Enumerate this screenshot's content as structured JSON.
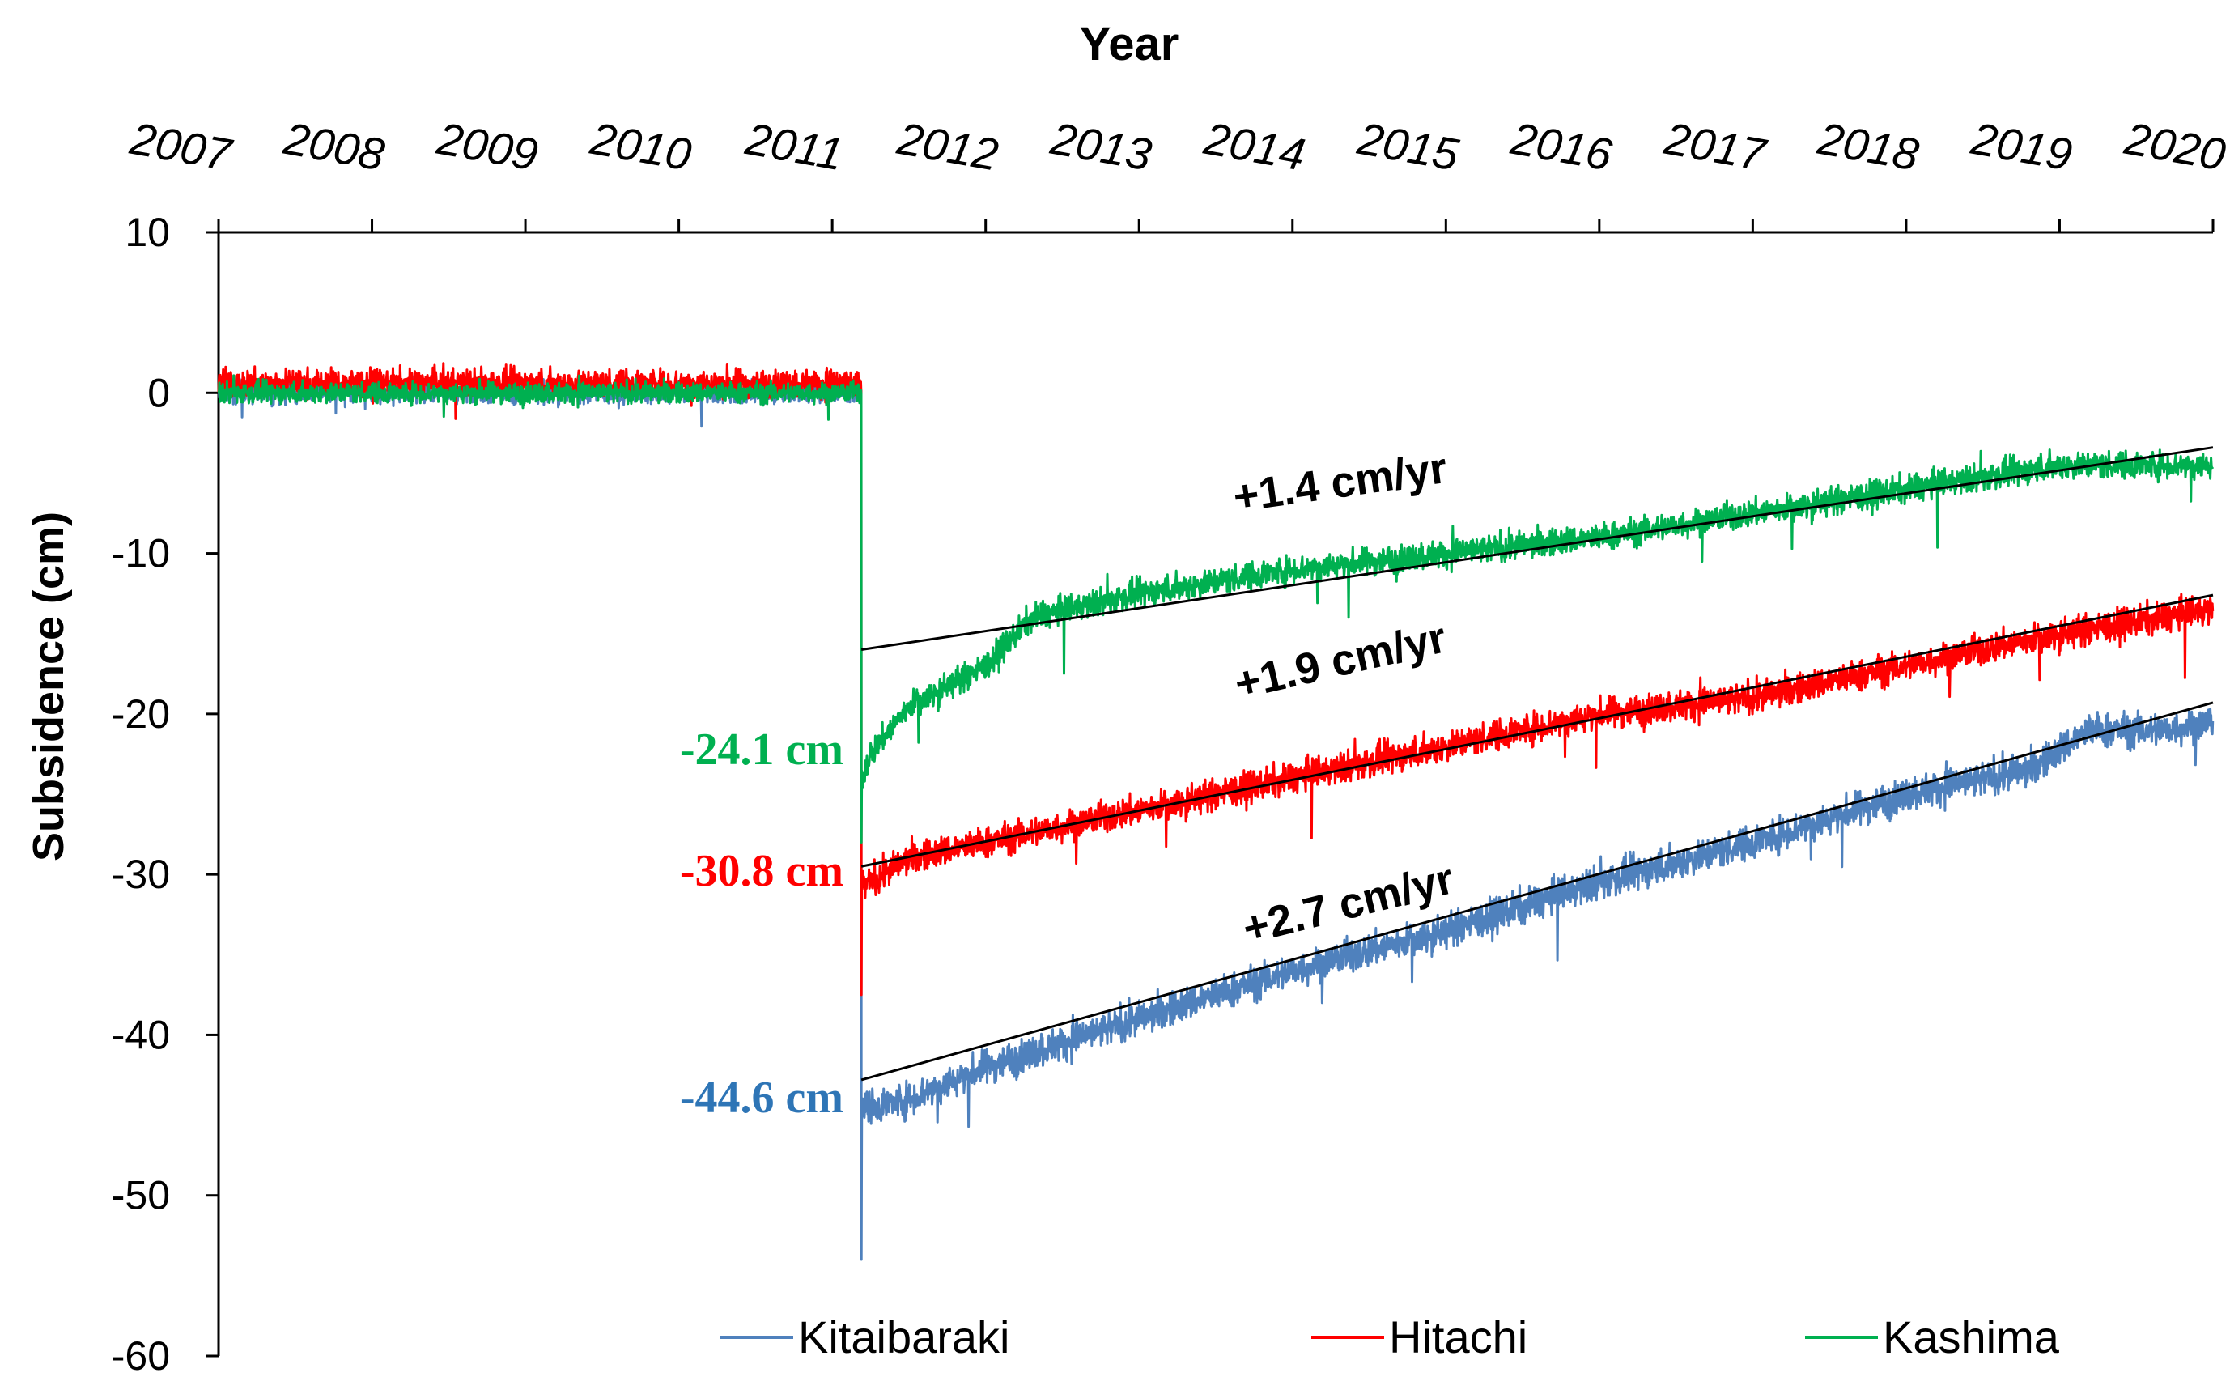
{
  "chart_data": {
    "type": "line",
    "title": "",
    "xlabel": "Year",
    "ylabel": "Subsidence (cm)",
    "x_ticks": [
      "2007",
      "2008",
      "2009",
      "2010",
      "2011",
      "2012",
      "2013",
      "2014",
      "2015",
      "2016",
      "2017",
      "2018",
      "2019",
      "2020"
    ],
    "xlim": [
      2007,
      2020
    ],
    "ylim": [
      -60,
      10
    ],
    "y_ticks": [
      "10",
      "0",
      "-10",
      "-20",
      "-30",
      "-40",
      "-50",
      "-60"
    ],
    "legend_position": "bottom",
    "earthquake_year": 2011.19,
    "series": [
      {
        "name": "Kitaibaraki",
        "color": "#4f81bd",
        "pre_event_mean": 0.0,
        "pre_event_noise": 0.6,
        "post_event_points": [
          [
            2011.19,
            -44.6
          ],
          [
            2011.5,
            -44.0
          ],
          [
            2012.0,
            -42.0
          ],
          [
            2013.0,
            -39.0
          ],
          [
            2014.0,
            -36.0
          ],
          [
            2015.0,
            -33.5
          ],
          [
            2016.0,
            -30.5
          ],
          [
            2017.0,
            -28.0
          ],
          [
            2018.0,
            -25.0
          ],
          [
            2018.8,
            -23.5
          ],
          [
            2019.2,
            -21.0
          ],
          [
            2019.7,
            -21.0
          ],
          [
            2020.0,
            -20.5
          ]
        ],
        "post_event_noise": 1.0,
        "min_spike": -54.0,
        "trend_label": "+2.7 cm/yr",
        "trend_line": [
          [
            2011.19,
            -42.8
          ],
          [
            2020.0,
            -19.3
          ]
        ],
        "offset_label": "-44.6 cm",
        "offset_color": "#2e75b6"
      },
      {
        "name": "Hitachi",
        "color": "#ff0000",
        "pre_event_mean": 0.6,
        "pre_event_noise": 0.8,
        "post_event_points": [
          [
            2011.19,
            -30.8
          ],
          [
            2011.5,
            -29.0
          ],
          [
            2012.0,
            -28.0
          ],
          [
            2013.0,
            -26.0
          ],
          [
            2014.0,
            -24.0
          ],
          [
            2015.0,
            -22.0
          ],
          [
            2016.0,
            -20.0
          ],
          [
            2017.0,
            -19.0
          ],
          [
            2018.0,
            -17.0
          ],
          [
            2019.0,
            -15.0
          ],
          [
            2020.0,
            -13.5
          ]
        ],
        "post_event_noise": 0.9,
        "min_spike": -37.5,
        "trend_label": "+1.9 cm/yr",
        "trend_line": [
          [
            2011.19,
            -29.5
          ],
          [
            2020.0,
            -12.6
          ]
        ],
        "offset_label": "-30.8 cm",
        "offset_color": "#ff0000"
      },
      {
        "name": "Kashima",
        "color": "#00b050",
        "pre_event_mean": 0.0,
        "pre_event_noise": 0.6,
        "post_event_points": [
          [
            2011.19,
            -24.1
          ],
          [
            2011.25,
            -22.5
          ],
          [
            2011.5,
            -19.5
          ],
          [
            2012.0,
            -17.0
          ],
          [
            2012.3,
            -14.0
          ],
          [
            2013.0,
            -12.5
          ],
          [
            2014.0,
            -11.0
          ],
          [
            2015.0,
            -10.0
          ],
          [
            2016.0,
            -9.0
          ],
          [
            2017.0,
            -7.5
          ],
          [
            2018.0,
            -6.0
          ],
          [
            2019.0,
            -4.5
          ],
          [
            2020.0,
            -4.5
          ]
        ],
        "post_event_noise": 0.8,
        "min_spike": -28.0,
        "trend_label": "+1.4 cm/yr",
        "trend_line": [
          [
            2011.19,
            -16.0
          ],
          [
            2020.0,
            -3.4
          ]
        ],
        "offset_label": "-24.1 cm",
        "offset_color": "#00b050"
      }
    ]
  },
  "colors": {
    "axis": "#000000",
    "trend": "#000000"
  }
}
